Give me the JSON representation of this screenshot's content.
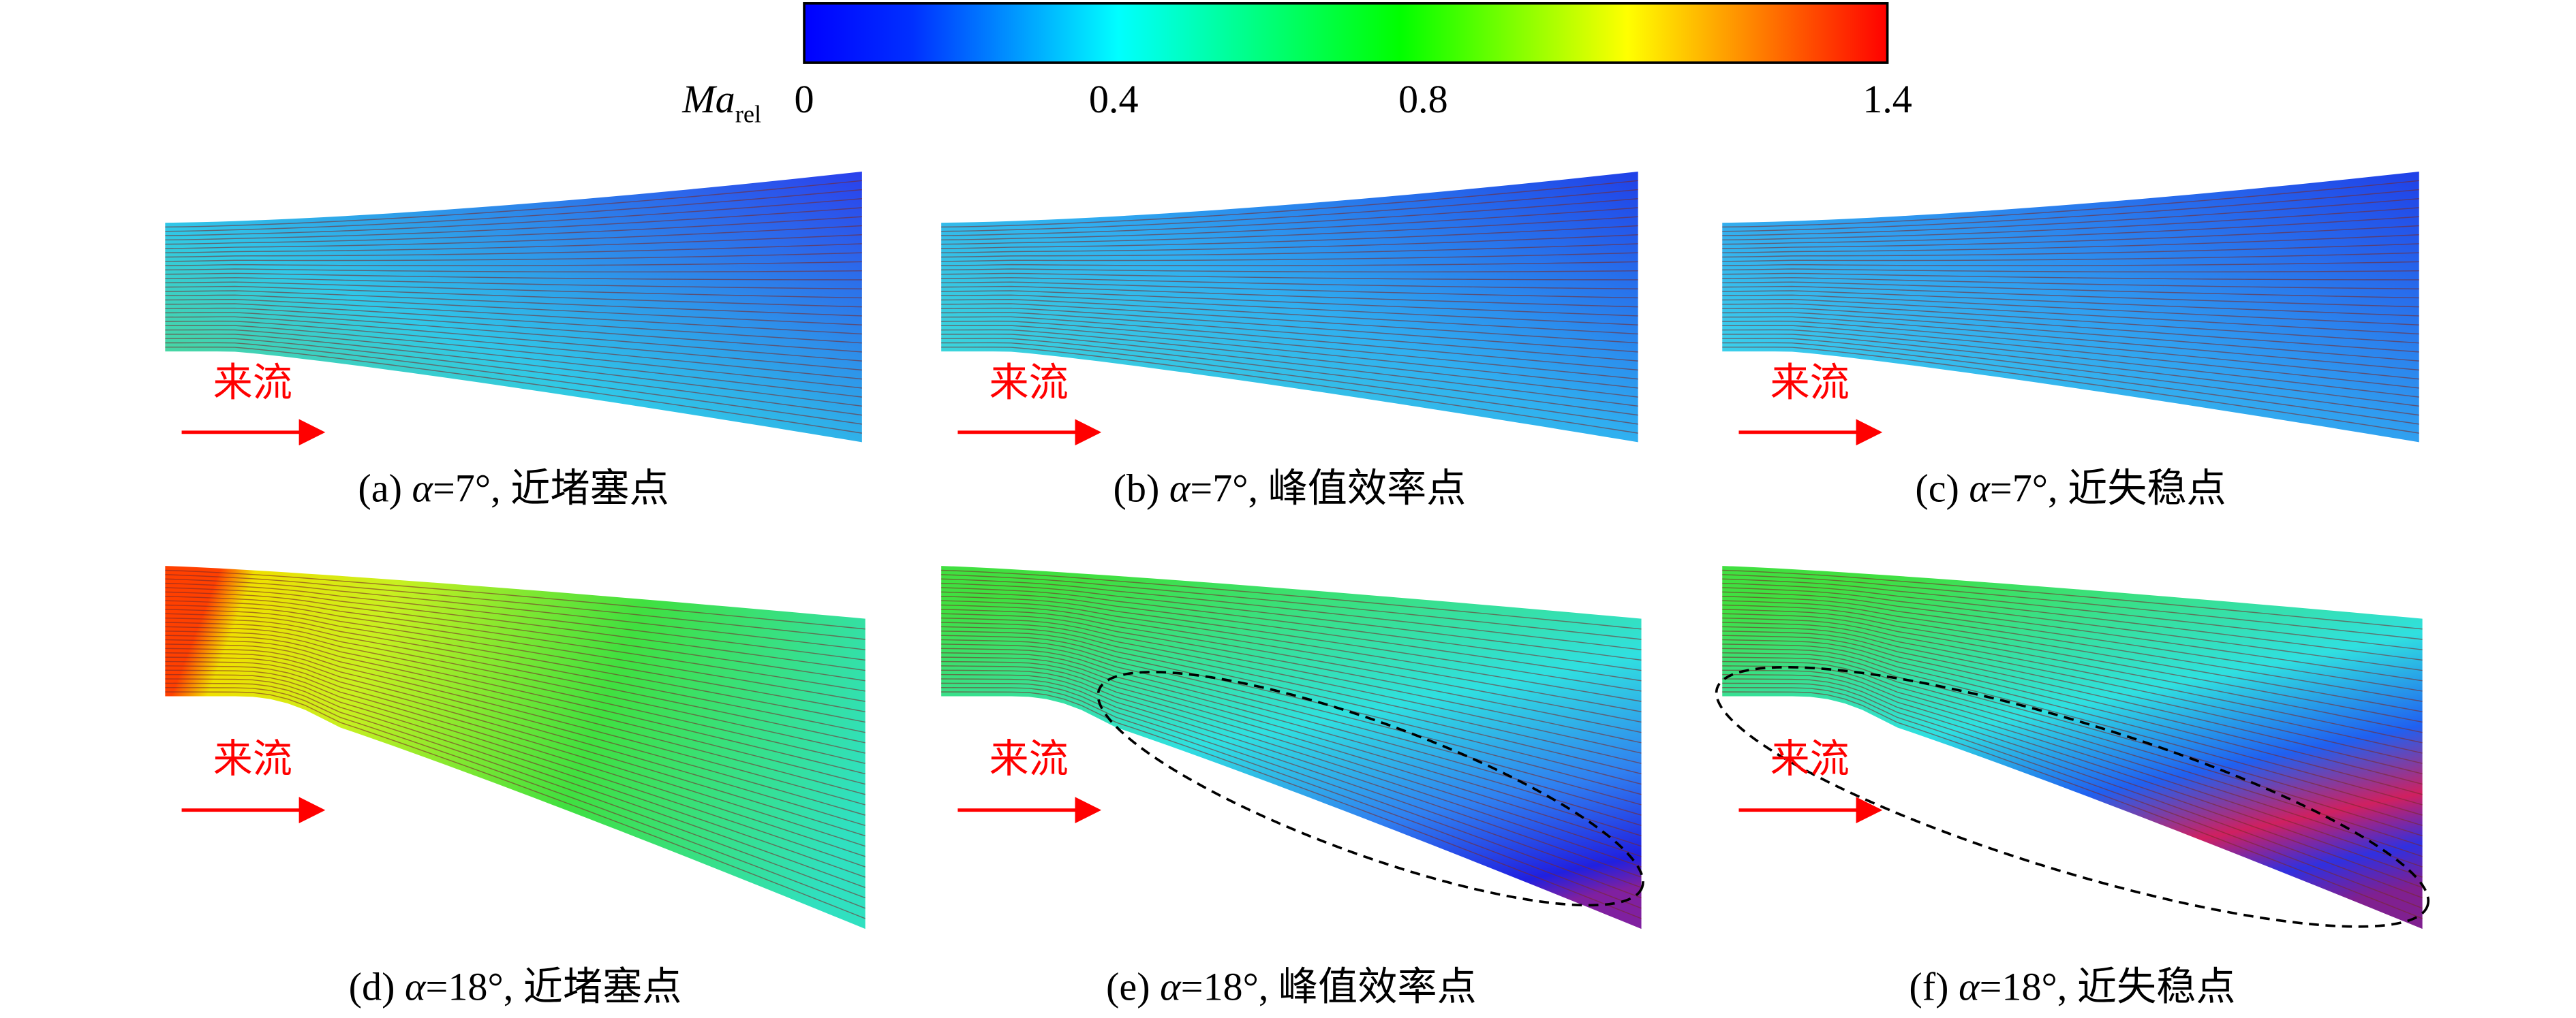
{
  "colorbar": {
    "label": "Ma",
    "label_sub": "rel",
    "ticks": [
      0,
      0.4,
      0.8,
      1.4
    ]
  },
  "panels": [
    {
      "id": "(a)",
      "symbol": "α",
      "condition": "=7°, 近堵塞点",
      "flow_label": "来流"
    },
    {
      "id": "(b)",
      "symbol": "α",
      "condition": "=7°, 峰值效率点",
      "flow_label": "来流"
    },
    {
      "id": "(c)",
      "symbol": "α",
      "condition": "=7°, 近失稳点",
      "flow_label": "来流"
    },
    {
      "id": "(d)",
      "symbol": "α",
      "condition": "=18°, 近堵塞点",
      "flow_label": "来流"
    },
    {
      "id": "(e)",
      "symbol": "α",
      "condition": "=18°, 峰值效率点",
      "flow_label": "来流"
    },
    {
      "id": "(f)",
      "symbol": "α",
      "condition": "=18°, 近失稳点",
      "flow_label": "来流"
    }
  ]
}
